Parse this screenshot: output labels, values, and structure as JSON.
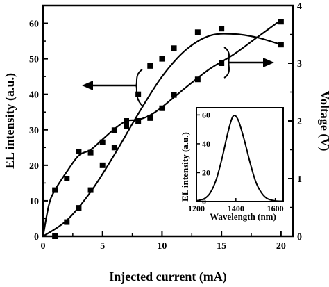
{
  "chart_data": [
    {
      "type": "line",
      "xlabel": "Injected current (mA)",
      "ylabel_left": "EL intensity (a.u.)",
      "ylabel_right": "Voltage (V)",
      "xlim": [
        0,
        21
      ],
      "ylim_left": [
        0,
        65
      ],
      "ylim_right": [
        0,
        4
      ],
      "x_ticks": [
        0,
        5,
        10,
        15,
        20
      ],
      "y_ticks_left": [
        0,
        10,
        20,
        30,
        40,
        50,
        60
      ],
      "y_ticks_right": [
        0,
        1,
        2,
        3,
        4
      ],
      "grid": false,
      "series": [
        {
          "axis": "left",
          "marker": "square",
          "x": [
            1,
            2,
            3,
            4,
            5,
            6,
            7,
            8,
            9,
            10,
            11,
            13,
            15,
            20
          ],
          "values": [
            0,
            4,
            8,
            13,
            20,
            25,
            31,
            40,
            48,
            50,
            53,
            57.5,
            58.5,
            54
          ],
          "fit_x": [
            0,
            2,
            4,
            6,
            8,
            10,
            12,
            14,
            16,
            18,
            20
          ],
          "fit_values": [
            0,
            4.5,
            12.5,
            23,
            34.5,
            45,
            52.5,
            56.5,
            57,
            56,
            54
          ]
        },
        {
          "axis": "right",
          "marker": "square",
          "x": [
            1,
            2,
            3,
            4,
            5,
            6,
            7,
            8,
            9,
            10,
            11,
            13,
            15,
            20
          ],
          "values": [
            0.8,
            1.0,
            1.47,
            1.45,
            1.63,
            1.84,
            2.0,
            2.0,
            2.05,
            2.22,
            2.45,
            2.72,
            3.0,
            3.72
          ],
          "fit_x": [
            0,
            0.5,
            1,
            2,
            3,
            4,
            5,
            6,
            7,
            8,
            9,
            10,
            12,
            14,
            16,
            18,
            20
          ],
          "fit_values": [
            0,
            0.55,
            0.8,
            1.12,
            1.4,
            1.5,
            1.68,
            1.86,
            2.0,
            2.02,
            2.1,
            2.24,
            2.58,
            2.9,
            3.15,
            3.45,
            3.75
          ]
        }
      ],
      "annotations": [
        "arrow pointing left to the EL intensity curve",
        "arrow pointing right to the voltage curve"
      ]
    },
    {
      "type": "line",
      "role": "inset",
      "xlabel": "Wavelength (nm)",
      "ylabel": "EL intensity (a.u.)",
      "xlim": [
        1200,
        1640
      ],
      "ylim": [
        0,
        65
      ],
      "x_ticks": [
        1200,
        1400,
        1600
      ],
      "y_ticks": [
        0,
        20,
        40,
        60
      ],
      "series": [
        {
          "peak_x": 1385,
          "peak_y": 59,
          "x": [
            1200,
            1240,
            1270,
            1300,
            1330,
            1360,
            1385,
            1410,
            1440,
            1470,
            1500,
            1530,
            1560,
            1600,
            1640
          ],
          "values": [
            0.5,
            2,
            6,
            15,
            30,
            48,
            59,
            57,
            44,
            28,
            14,
            6,
            2,
            0.5,
            0.2
          ]
        }
      ]
    }
  ]
}
